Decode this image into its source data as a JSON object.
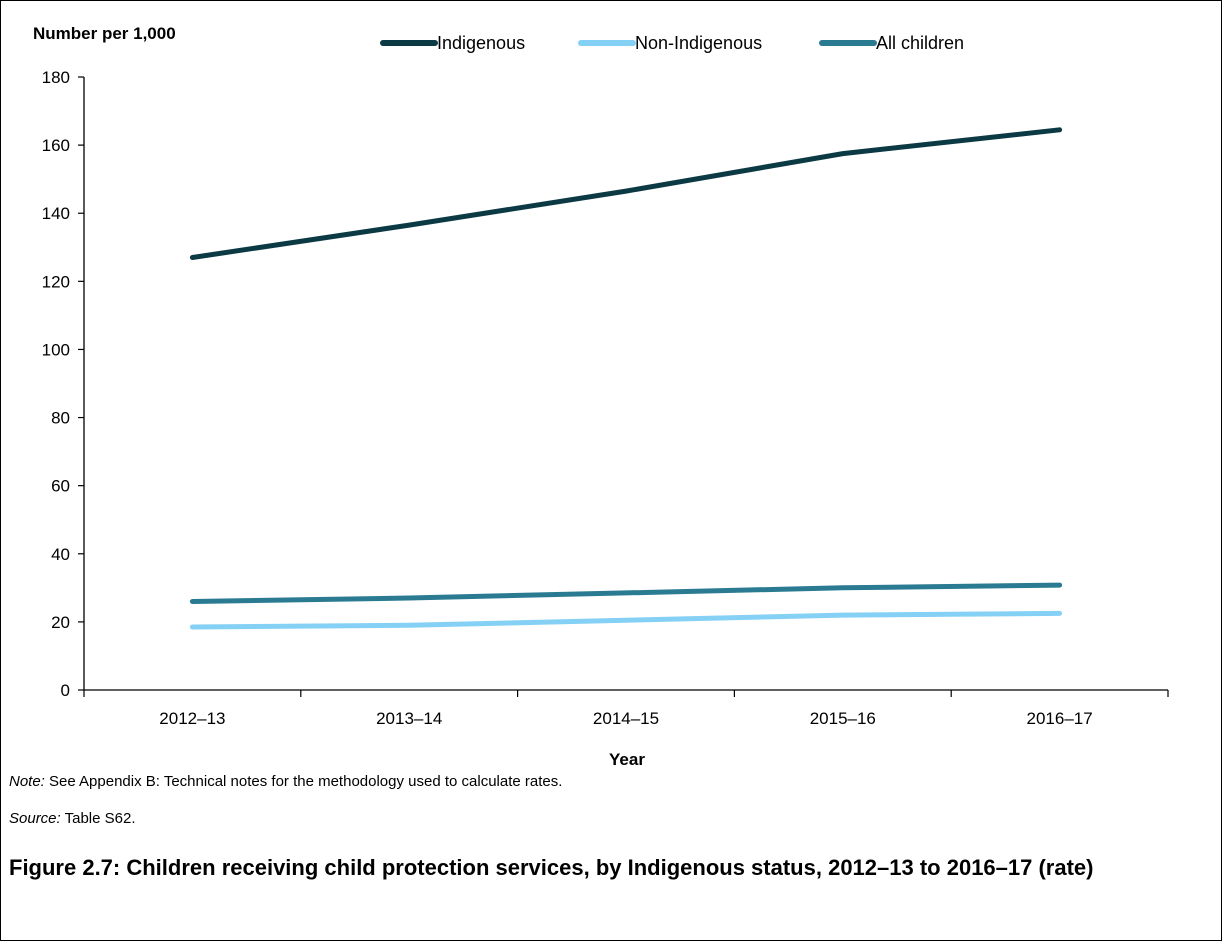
{
  "chart_data": {
    "type": "line",
    "ylabel": "Number per 1,000",
    "xlabel": "Year",
    "categories": [
      "2012–13",
      "2013–14",
      "2014–15",
      "2015–16",
      "2016–17"
    ],
    "ylim": [
      0,
      180
    ],
    "yticks": [
      "0",
      "20",
      "40",
      "60",
      "80",
      "100",
      "120",
      "140",
      "160",
      "180"
    ],
    "grid": false,
    "legend_position": "top",
    "series": [
      {
        "name": "Indigenous",
        "color": "#0b3a44",
        "values": [
          127,
          136.5,
          146.5,
          157.5,
          164.5
        ]
      },
      {
        "name": "Non-Indigenous",
        "color": "#85d0f5",
        "values": [
          18.5,
          19,
          20.5,
          22,
          22.5
        ]
      },
      {
        "name": "All children",
        "color": "#2a7a92",
        "values": [
          26,
          27,
          28.5,
          30,
          30.8
        ]
      }
    ]
  },
  "note": {
    "label": "Note:",
    "text": " See Appendix B: Technical notes for the methodology used to calculate rates."
  },
  "source": {
    "label": "Source:",
    "text": " Table S62."
  },
  "caption": "Figure 2.7: Children receiving child protection services, by Indigenous status, 2012–13 to 2016–17 (rate)"
}
